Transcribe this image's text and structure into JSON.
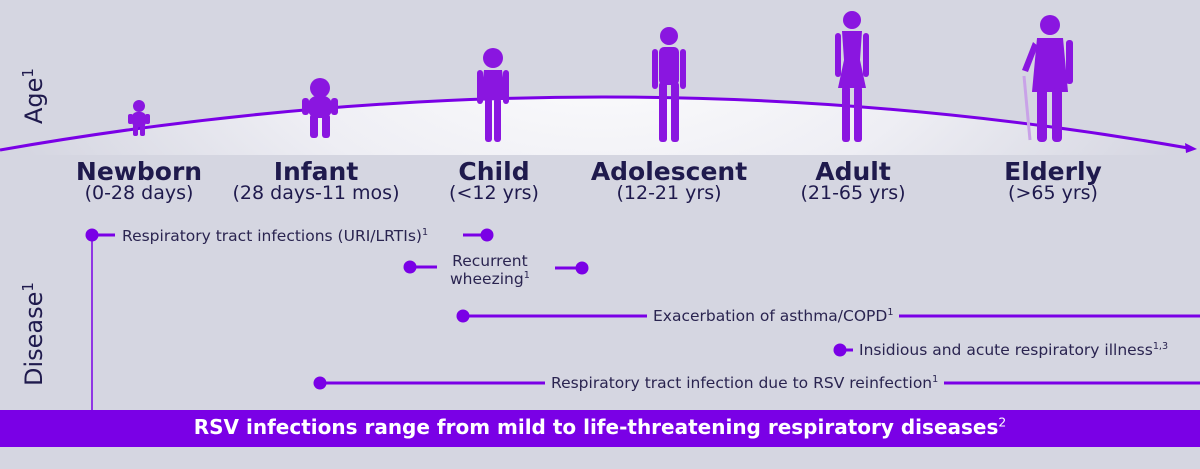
{
  "axes": {
    "age_label": "Age",
    "age_sup": "1",
    "disease_label": "Disease",
    "disease_sup": "1"
  },
  "stages": [
    {
      "name": "Newborn",
      "range": "(0-28 days)"
    },
    {
      "name": "Infant",
      "range": "(28 days-11 mos)"
    },
    {
      "name": "Child",
      "range": "(<12 yrs)"
    },
    {
      "name": "Adolescent",
      "range": "(12-21 yrs)"
    },
    {
      "name": "Adult",
      "range": "(21-65 yrs)"
    },
    {
      "name": "Elderly",
      "range": "(>65 yrs)"
    }
  ],
  "diseases": [
    {
      "label": "Respiratory tract infections (URI/LRTIs)",
      "sup": "1"
    },
    {
      "label_line1": "Recurrent",
      "label_line2": "wheezing",
      "sup": "1"
    },
    {
      "label": "Exacerbation of asthma/COPD",
      "sup": "1"
    },
    {
      "label": "Insidious and acute respiratory illness",
      "sup": "1,3"
    },
    {
      "label": "Respiratory tract infection due to RSV reinfection",
      "sup": "1"
    }
  ],
  "banner": {
    "text": "RSV infections range from mild to life-threatening respiratory diseases",
    "sup": "2"
  },
  "colors": {
    "accent": "#7a00e6",
    "figure": "#8a16e0",
    "text": "#1f1a4d",
    "background": "#d5d6e1"
  }
}
